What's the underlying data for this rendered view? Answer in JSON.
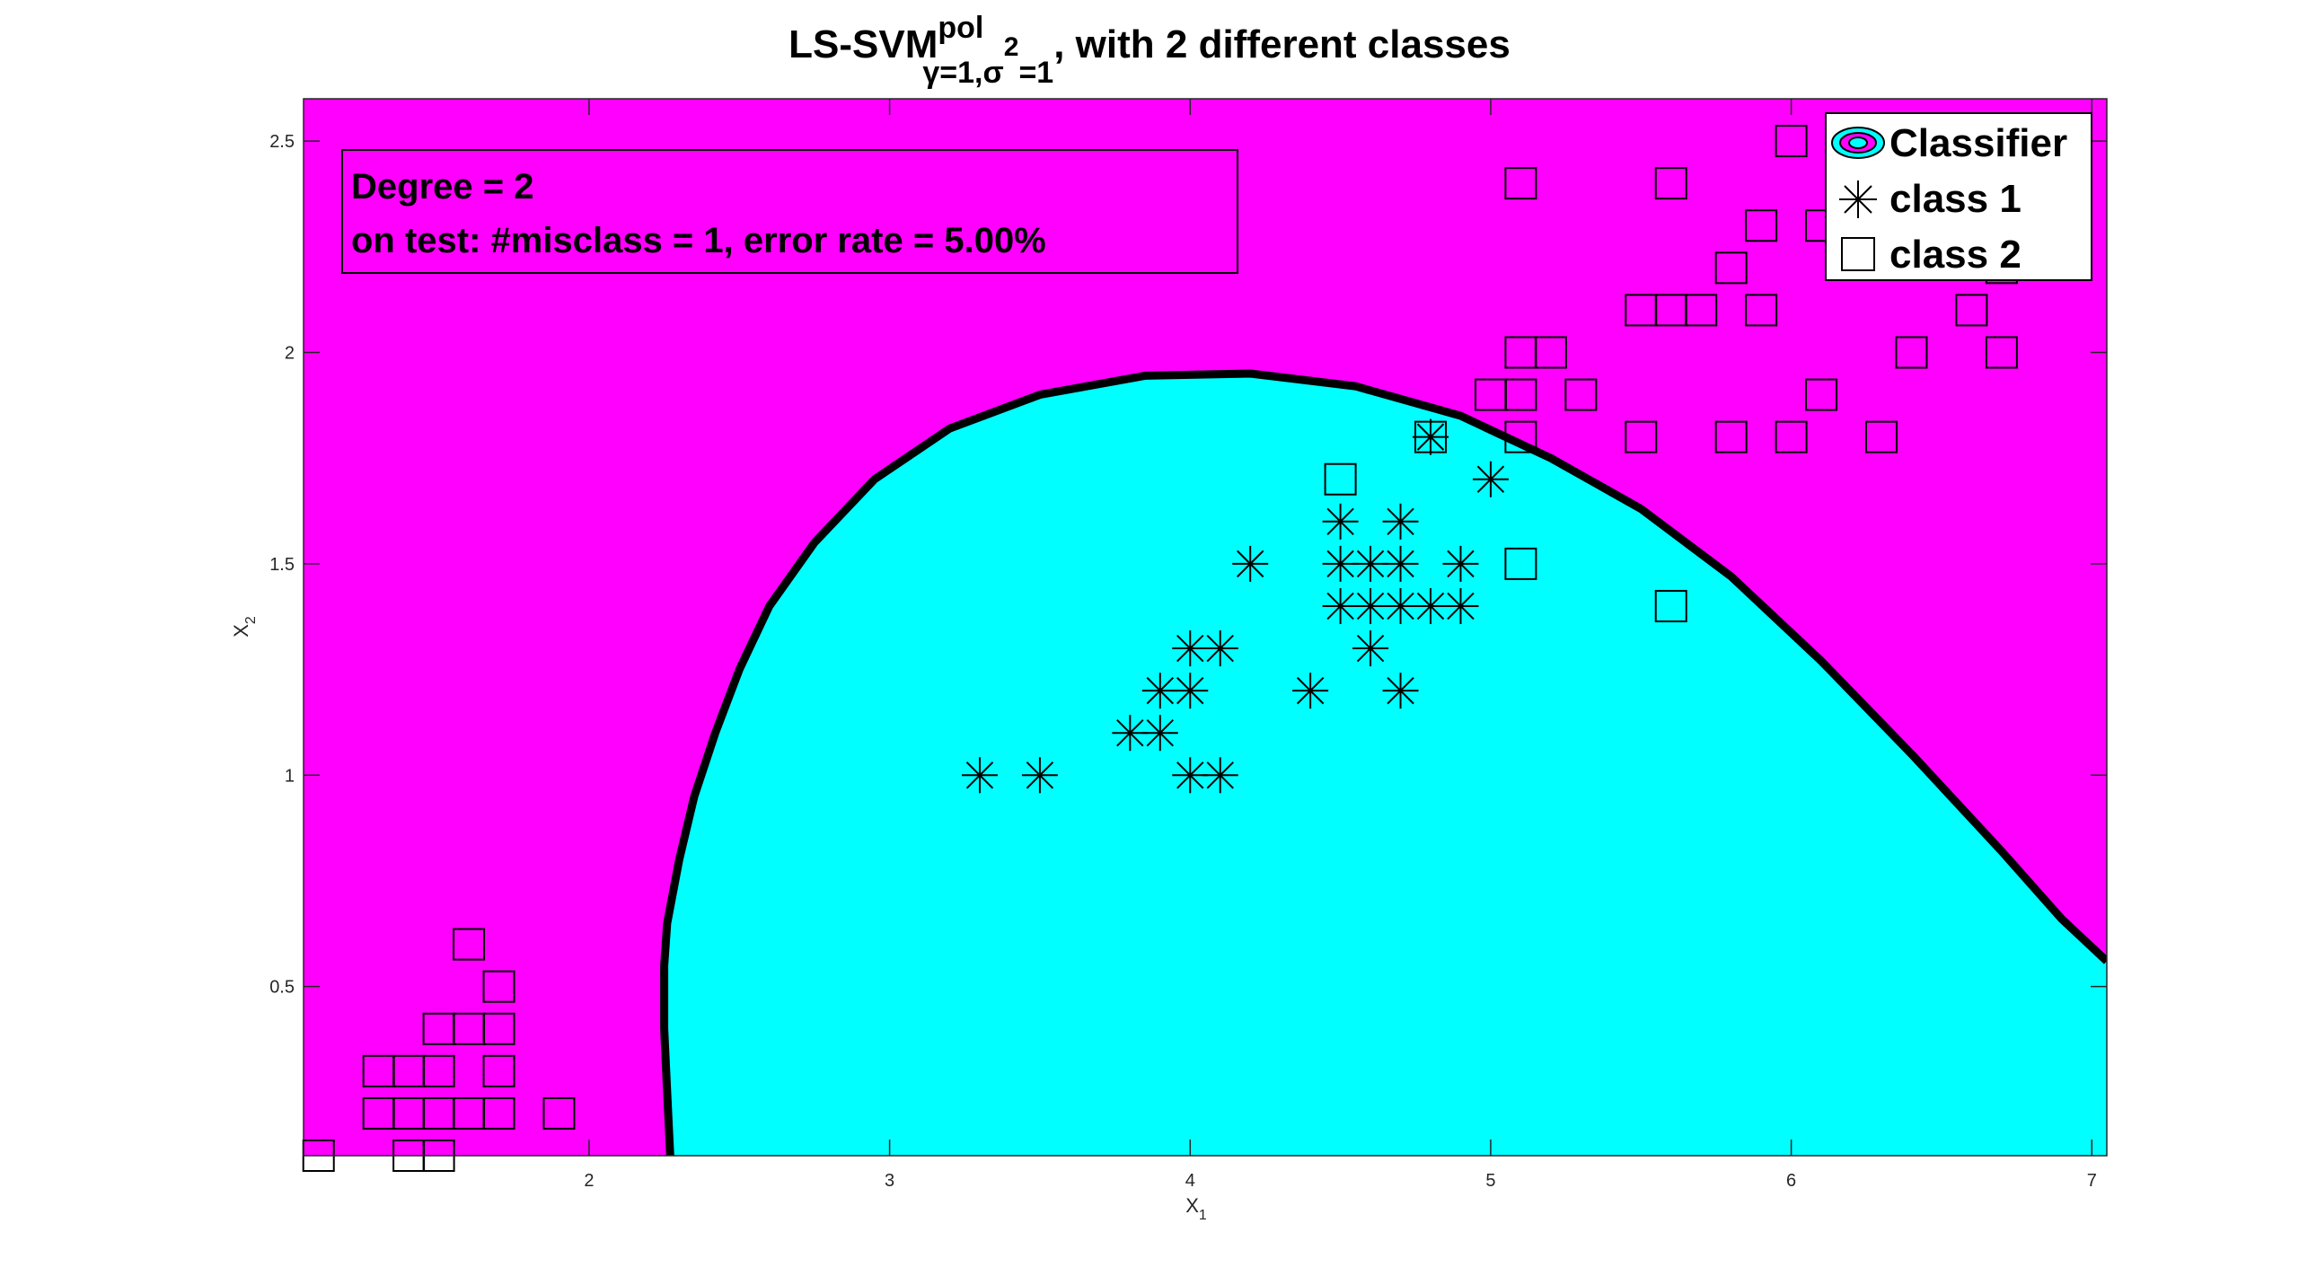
{
  "chart_data": {
    "type": "scatter",
    "title": {
      "main": "LS-SVM",
      "superscript": "pol",
      "subscript_gamma": "γ=1,",
      "subscript_sigma": "σ",
      "subscript_sigma_exp": "2",
      "subscript_rest": "=1",
      "suffix": ", with 2 different classes"
    },
    "xlabel": {
      "base": "X",
      "sub": "1"
    },
    "ylabel": {
      "base": "X",
      "sub": "2"
    },
    "xlim": [
      1.05,
      7.05
    ],
    "ylim": [
      0.1,
      2.6
    ],
    "xticks": [
      2,
      3,
      4,
      5,
      6,
      7
    ],
    "yticks": [
      0.5,
      1,
      1.5,
      2,
      2.5
    ],
    "grid": false,
    "legend_position": "top-right",
    "annotation": {
      "line1": "Degree = 2",
      "line2": "on test: #misclass = 1, error rate = 5.00%"
    },
    "colors": {
      "background_region": "#ff00ff",
      "classifier_region": "#00ffff",
      "boundary": "#000000",
      "markers": "#000000"
    },
    "legend": {
      "classifier": "Classifier",
      "class1": "class 1",
      "class2": "class 2"
    },
    "boundary": [
      [
        2.27,
        0.1
      ],
      [
        2.26,
        0.25
      ],
      [
        2.25,
        0.4
      ],
      [
        2.25,
        0.55
      ],
      [
        2.26,
        0.65
      ],
      [
        2.3,
        0.8
      ],
      [
        2.35,
        0.95
      ],
      [
        2.42,
        1.1
      ],
      [
        2.5,
        1.25
      ],
      [
        2.6,
        1.4
      ],
      [
        2.75,
        1.55
      ],
      [
        2.95,
        1.7
      ],
      [
        3.2,
        1.82
      ],
      [
        3.5,
        1.9
      ],
      [
        3.85,
        1.945
      ],
      [
        4.2,
        1.95
      ],
      [
        4.55,
        1.92
      ],
      [
        4.9,
        1.85
      ],
      [
        5.2,
        1.75
      ],
      [
        5.5,
        1.63
      ],
      [
        5.8,
        1.47
      ],
      [
        6.1,
        1.27
      ],
      [
        6.4,
        1.05
      ],
      [
        6.7,
        0.82
      ],
      [
        6.9,
        0.66
      ],
      [
        7.05,
        0.56
      ]
    ],
    "series": [
      {
        "name": "class 1",
        "marker": "asterisk",
        "points": [
          [
            3.3,
            1.0
          ],
          [
            3.5,
            1.0
          ],
          [
            4.0,
            1.0
          ],
          [
            4.1,
            1.0
          ],
          [
            3.8,
            1.1
          ],
          [
            3.9,
            1.1
          ],
          [
            3.9,
            1.2
          ],
          [
            4.0,
            1.2
          ],
          [
            4.4,
            1.2
          ],
          [
            4.7,
            1.2
          ],
          [
            4.0,
            1.3
          ],
          [
            4.1,
            1.3
          ],
          [
            4.6,
            1.3
          ],
          [
            4.5,
            1.4
          ],
          [
            4.6,
            1.4
          ],
          [
            4.7,
            1.4
          ],
          [
            4.8,
            1.4
          ],
          [
            4.9,
            1.4
          ],
          [
            4.2,
            1.5
          ],
          [
            4.5,
            1.5
          ],
          [
            4.6,
            1.5
          ],
          [
            4.7,
            1.5
          ],
          [
            4.9,
            1.5
          ],
          [
            4.5,
            1.6
          ],
          [
            4.7,
            1.6
          ],
          [
            5.0,
            1.7
          ],
          [
            4.8,
            1.8
          ]
        ]
      },
      {
        "name": "class 2",
        "marker": "square",
        "points": [
          [
            1.1,
            0.1
          ],
          [
            1.4,
            0.1
          ],
          [
            1.5,
            0.1
          ],
          [
            1.3,
            0.2
          ],
          [
            1.4,
            0.2
          ],
          [
            1.5,
            0.2
          ],
          [
            1.6,
            0.2
          ],
          [
            1.7,
            0.2
          ],
          [
            1.9,
            0.2
          ],
          [
            1.3,
            0.3
          ],
          [
            1.4,
            0.3
          ],
          [
            1.5,
            0.3
          ],
          [
            1.7,
            0.3
          ],
          [
            1.5,
            0.4
          ],
          [
            1.6,
            0.4
          ],
          [
            1.7,
            0.4
          ],
          [
            1.7,
            0.5
          ],
          [
            1.6,
            0.6
          ],
          [
            5.6,
            1.4
          ],
          [
            5.1,
            1.5
          ],
          [
            4.5,
            1.7
          ],
          [
            4.8,
            1.8
          ],
          [
            5.1,
            1.8
          ],
          [
            5.5,
            1.8
          ],
          [
            5.8,
            1.8
          ],
          [
            6.0,
            1.8
          ],
          [
            6.3,
            1.8
          ],
          [
            5.0,
            1.9
          ],
          [
            5.1,
            1.9
          ],
          [
            5.3,
            1.9
          ],
          [
            6.1,
            1.9
          ],
          [
            5.1,
            2.0
          ],
          [
            5.2,
            2.0
          ],
          [
            6.4,
            2.0
          ],
          [
            6.7,
            2.0
          ],
          [
            5.5,
            2.1
          ],
          [
            5.6,
            2.1
          ],
          [
            5.7,
            2.1
          ],
          [
            5.9,
            2.1
          ],
          [
            6.6,
            2.1
          ],
          [
            5.8,
            2.2
          ],
          [
            6.7,
            2.2
          ],
          [
            5.9,
            2.3
          ],
          [
            6.1,
            2.3
          ],
          [
            5.1,
            2.4
          ],
          [
            5.6,
            2.4
          ],
          [
            6.0,
            2.5
          ]
        ]
      }
    ]
  }
}
